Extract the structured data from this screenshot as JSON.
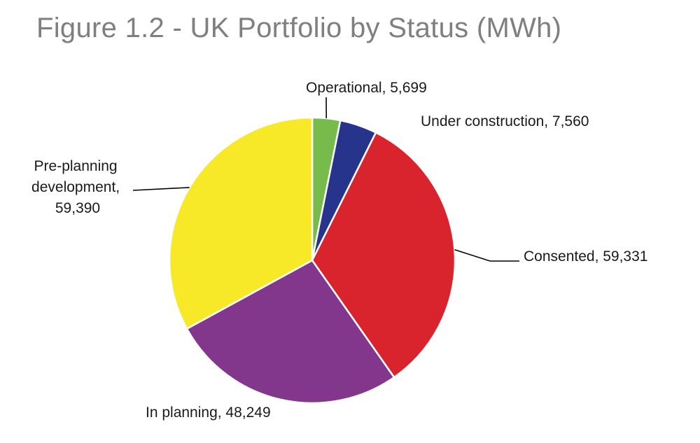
{
  "chart_data": {
    "type": "pie",
    "title": "Figure 1.2 - UK Portfolio by Status (MWh)",
    "slices": [
      {
        "name": "Operational",
        "value": 5699,
        "label": "Operational, 5,699",
        "color": "#77bb4d"
      },
      {
        "name": "Under construction",
        "value": 7560,
        "label": "Under construction, 7,560",
        "color": "#27348b"
      },
      {
        "name": "Consented",
        "value": 59331,
        "label": "Consented, 59,331",
        "color": "#d9232d"
      },
      {
        "name": "In planning",
        "value": 48249,
        "label": "In planning, 48,249",
        "color": "#82368c"
      },
      {
        "name": "Pre-planning development",
        "value": 59390,
        "label_lines": [
          "Pre-planning",
          "development,",
          "59,390"
        ],
        "color": "#f7e928"
      }
    ]
  }
}
